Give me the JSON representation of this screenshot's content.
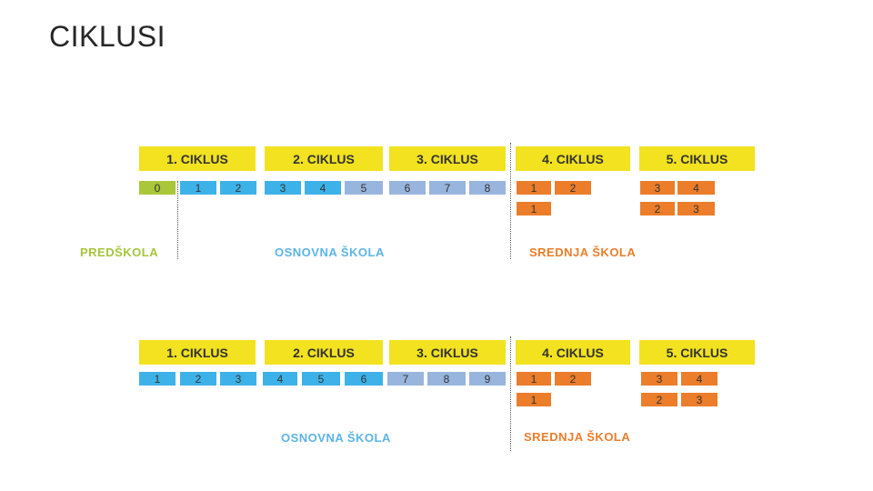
{
  "slide": {
    "title": "CIKLUSI"
  },
  "colors": {
    "yellow": "#f2e21f",
    "green": "#a9c739",
    "blue": "#3db2e8",
    "blue_light": "#98b5de",
    "orange": "#ec7d2a",
    "label_green": "#a6c53a",
    "label_blue": "#5bb4e5",
    "label_orange": "#ec7d2a"
  },
  "diagrams": [
    {
      "cycles": [
        "1. CIKLUS",
        "2. CIKLUS",
        "3. CIKLUS",
        "4. CIKLUS",
        "5. CIKLUS"
      ],
      "grades_row1": [
        "0",
        "1",
        "2",
        "3",
        "4",
        "5",
        "6",
        "7",
        "8",
        "1",
        "2",
        "3",
        "4"
      ],
      "grades_row2": [
        "1",
        "2",
        "3"
      ],
      "labels": [
        "PREDŠKOLA",
        "OSNOVNA ŠKOLA",
        "SREDNJA ŠKOLA"
      ]
    },
    {
      "cycles": [
        "1. CIKLUS",
        "2. CIKLUS",
        "3. CIKLUS",
        "4. CIKLUS",
        "5. CIKLUS"
      ],
      "grades_row1": [
        "1",
        "2",
        "3",
        "4",
        "5",
        "6",
        "7",
        "8",
        "9",
        "1",
        "2",
        "3",
        "4"
      ],
      "grades_row2": [
        "1",
        "2",
        "3"
      ],
      "labels": [
        "OSNOVNA ŠKOLA",
        "SREDNJA ŠKOLA"
      ]
    }
  ]
}
